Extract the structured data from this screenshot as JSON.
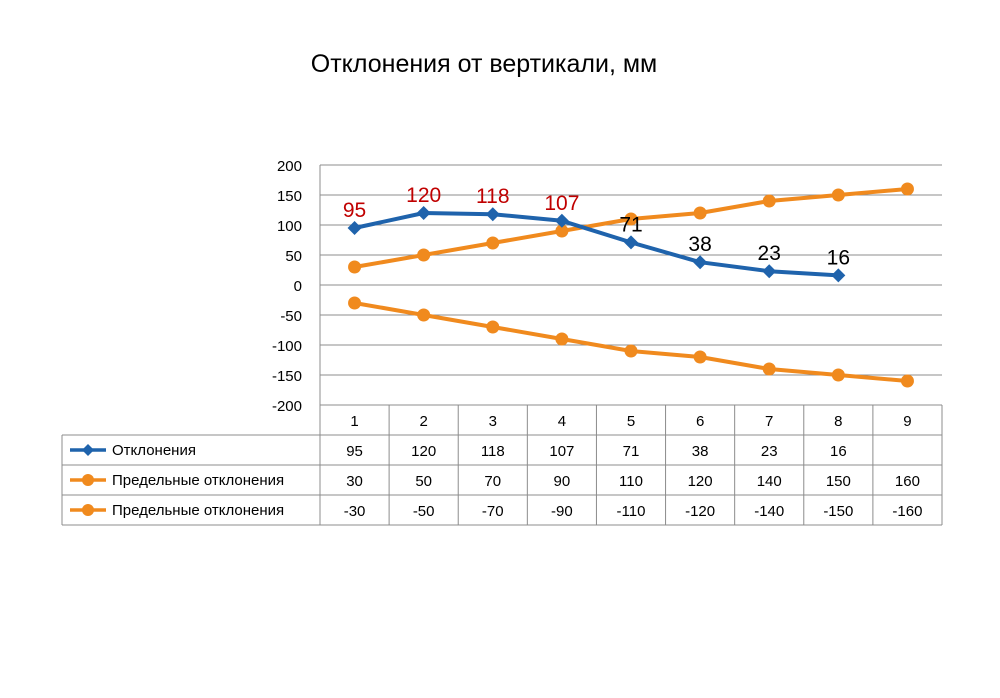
{
  "chart_data": {
    "type": "line",
    "title": "Отклонения от вертикали, мм",
    "categories": [
      "1",
      "2",
      "3",
      "4",
      "5",
      "6",
      "7",
      "8",
      "9"
    ],
    "ylim": [
      -200,
      200
    ],
    "ytick_step": 50,
    "yticks": [
      "200",
      "150",
      "100",
      "50",
      "0",
      "-50",
      "-100",
      "-150",
      "-200"
    ],
    "grid": true,
    "legend": "data table below the plot",
    "series": [
      {
        "name": "Отклонения",
        "color": "#1f63ac",
        "marker": "diamond",
        "values": [
          95,
          120,
          118,
          107,
          71,
          38,
          23,
          16,
          null
        ],
        "data_labels": [
          "95",
          "120",
          "118",
          "107",
          "71",
          "38",
          "23",
          "16",
          ""
        ],
        "label_colors": [
          "#c00000",
          "#c00000",
          "#c00000",
          "#c00000",
          "#000000",
          "#000000",
          "#000000",
          "#000000",
          "#000000"
        ]
      },
      {
        "name": "Предельные отклонения",
        "color": "#f08a1e",
        "marker": "circle",
        "values": [
          30,
          50,
          70,
          90,
          110,
          120,
          140,
          150,
          160
        ]
      },
      {
        "name": "Предельные отклонения",
        "color": "#f08a1e",
        "marker": "circle",
        "values": [
          -30,
          -50,
          -70,
          -90,
          -110,
          -120,
          -140,
          -150,
          -160
        ]
      }
    ]
  }
}
